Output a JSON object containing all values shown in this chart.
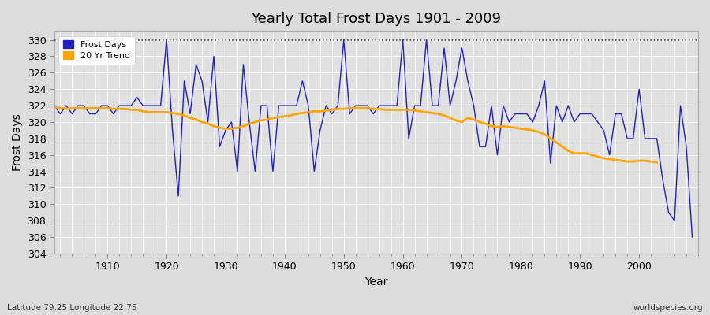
{
  "title": "Yearly Total Frost Days 1901 - 2009",
  "xlabel": "Year",
  "ylabel": "Frost Days",
  "bg_color": "#dcdcdc",
  "plot_bg_color": "#e0e0e0",
  "line_color": "#2222bb",
  "trend_color": "#FFA500",
  "ylim": [
    304,
    331
  ],
  "yticks": [
    304,
    306,
    308,
    310,
    312,
    314,
    316,
    318,
    320,
    322,
    324,
    326,
    328,
    330
  ],
  "hline_y": 330,
  "subtitle_lat": "Latitude 79.25 Longitude 22.75",
  "watermark": "worldspecies.org",
  "years": [
    1901,
    1902,
    1903,
    1904,
    1905,
    1906,
    1907,
    1908,
    1909,
    1910,
    1911,
    1912,
    1913,
    1914,
    1915,
    1916,
    1917,
    1918,
    1919,
    1920,
    1921,
    1922,
    1923,
    1924,
    1925,
    1926,
    1927,
    1928,
    1929,
    1930,
    1931,
    1932,
    1933,
    1934,
    1935,
    1936,
    1937,
    1938,
    1939,
    1940,
    1941,
    1942,
    1943,
    1944,
    1945,
    1946,
    1947,
    1948,
    1949,
    1950,
    1951,
    1952,
    1953,
    1954,
    1955,
    1956,
    1957,
    1958,
    1959,
    1960,
    1961,
    1962,
    1963,
    1964,
    1965,
    1966,
    1967,
    1968,
    1969,
    1970,
    1971,
    1972,
    1973,
    1974,
    1975,
    1976,
    1977,
    1978,
    1979,
    1980,
    1981,
    1982,
    1983,
    1984,
    1985,
    1986,
    1987,
    1988,
    1989,
    1990,
    1991,
    1992,
    1993,
    1994,
    1995,
    1996,
    1997,
    1998,
    1999,
    2000,
    2001,
    2002,
    2003,
    2004,
    2005,
    2006,
    2007,
    2008,
    2009
  ],
  "frost_days": [
    322,
    321,
    322,
    321,
    322,
    322,
    321,
    321,
    322,
    322,
    321,
    322,
    322,
    322,
    323,
    322,
    322,
    322,
    322,
    330,
    319,
    311,
    325,
    321,
    327,
    325,
    320,
    328,
    317,
    319,
    320,
    314,
    327,
    320,
    314,
    322,
    322,
    314,
    322,
    322,
    322,
    322,
    325,
    322,
    314,
    319,
    322,
    321,
    322,
    330,
    321,
    322,
    322,
    322,
    321,
    322,
    322,
    322,
    322,
    330,
    318,
    322,
    322,
    330,
    322,
    322,
    329,
    322,
    325,
    329,
    325,
    322,
    317,
    317,
    322,
    316,
    322,
    320,
    321,
    321,
    321,
    320,
    322,
    325,
    315,
    322,
    320,
    322,
    320,
    321,
    321,
    321,
    320,
    319,
    316,
    321,
    321,
    318,
    318,
    324,
    318,
    318,
    318,
    313,
    309,
    308,
    322,
    317,
    306
  ],
  "trend_years": [
    1901,
    1902,
    1903,
    1904,
    1905,
    1906,
    1907,
    1908,
    1909,
    1910,
    1911,
    1912,
    1913,
    1914,
    1915,
    1916,
    1917,
    1918,
    1919,
    1920,
    1921,
    1922,
    1923,
    1924,
    1925,
    1926,
    1927,
    1928,
    1929,
    1930,
    1931,
    1932,
    1933,
    1934,
    1935,
    1936,
    1937,
    1938,
    1939,
    1940,
    1941,
    1942,
    1943,
    1944,
    1945,
    1946,
    1947,
    1948,
    1949,
    1950,
    1951,
    1952,
    1953,
    1954,
    1955,
    1956,
    1957,
    1958,
    1959,
    1960,
    1961,
    1962,
    1963,
    1964,
    1965,
    1966,
    1967,
    1968,
    1969,
    1970,
    1971,
    1972,
    1973,
    1974,
    1975,
    1976,
    1977,
    1978,
    1979,
    1980,
    1981,
    1982,
    1983,
    1984,
    1985,
    1986,
    1987,
    1988,
    1989,
    1990,
    1991,
    1992,
    1993,
    1994,
    1995,
    1996,
    1997,
    1998,
    1999,
    2000,
    2001,
    2002,
    2003
  ],
  "trend_values": [
    321.8,
    321.7,
    321.6,
    321.7,
    321.7,
    321.7,
    321.7,
    321.7,
    321.7,
    321.7,
    321.6,
    321.6,
    321.6,
    321.5,
    321.5,
    321.3,
    321.2,
    321.2,
    321.2,
    321.2,
    321.1,
    321.0,
    320.8,
    320.5,
    320.3,
    320.0,
    319.8,
    319.5,
    319.3,
    319.2,
    319.2,
    319.3,
    319.5,
    319.8,
    320.0,
    320.2,
    320.3,
    320.5,
    320.6,
    320.7,
    320.8,
    321.0,
    321.1,
    321.2,
    321.3,
    321.3,
    321.4,
    321.5,
    321.6,
    321.6,
    321.7,
    321.7,
    321.7,
    321.7,
    321.6,
    321.6,
    321.5,
    321.5,
    321.5,
    321.5,
    321.5,
    321.4,
    321.3,
    321.2,
    321.1,
    321.0,
    320.8,
    320.5,
    320.2,
    320.0,
    320.5,
    320.3,
    320.0,
    319.8,
    319.5,
    319.4,
    319.5,
    319.4,
    319.3,
    319.2,
    319.1,
    319.0,
    318.8,
    318.5,
    318.0,
    317.5,
    317.0,
    316.5,
    316.2,
    316.2,
    316.2,
    316.0,
    315.8,
    315.6,
    315.5,
    315.4,
    315.3,
    315.2,
    315.2,
    315.3,
    315.3,
    315.2,
    315.1
  ]
}
